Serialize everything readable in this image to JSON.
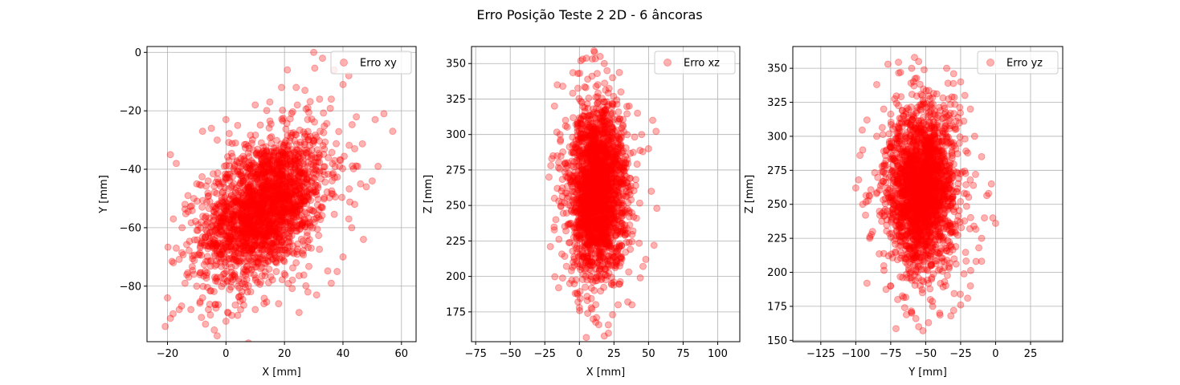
{
  "figure": {
    "title": "Erro Posição Teste 2 2D - 6 âncoras",
    "marker_color": "#ff0000",
    "marker_alpha": 0.3
  },
  "chart_data": [
    {
      "type": "scatter",
      "xlabel": "X [mm]",
      "ylabel": "Y [mm]",
      "xlim": [
        -27,
        65
      ],
      "ylim": [
        -99,
        2
      ],
      "xticks": [
        -20,
        0,
        20,
        40,
        60
      ],
      "yticks": [
        -80,
        -60,
        -40,
        -20,
        0
      ],
      "xtick_labels": [
        "−20",
        "0",
        "20",
        "40",
        "60"
      ],
      "ytick_labels": [
        "−80",
        "−60",
        "−40",
        "−20",
        "0"
      ],
      "grid": true,
      "legend_position": "top-right",
      "series": [
        {
          "name": "Erro xy",
          "cloud": {
            "center": [
              13,
              -53
            ],
            "std": [
              10.5,
              12.5
            ],
            "corr": 0.42,
            "n": 2200
          },
          "points": [
            [
              30,
              0
            ],
            [
              33,
              -2
            ],
            [
              37,
              -6
            ],
            [
              42,
              -8
            ],
            [
              40,
              -11
            ],
            [
              21,
              -6
            ],
            [
              54,
              -21
            ],
            [
              57,
              -27
            ],
            [
              51,
              -23
            ],
            [
              52,
              -39
            ],
            [
              48,
              -46
            ],
            [
              44,
              -52
            ],
            [
              42,
              -57
            ],
            [
              40,
              -70
            ],
            [
              47,
              -64
            ],
            [
              36,
              -79
            ],
            [
              31,
              -83
            ],
            [
              25,
              -89
            ],
            [
              4,
              -90
            ],
            [
              -19,
              -35
            ],
            [
              -17,
              -38
            ],
            [
              -20,
              -84
            ],
            [
              -19,
              -91
            ],
            [
              -16,
              -88
            ],
            [
              -12,
              -88
            ],
            [
              -7,
              -93
            ],
            [
              -6,
              -88
            ],
            [
              -4,
              -95
            ],
            [
              -3,
              -97
            ],
            [
              0,
              -92
            ],
            [
              2,
              -90
            ],
            [
              5,
              -88
            ],
            [
              10,
              -88
            ],
            [
              13,
              -86
            ],
            [
              -18,
              -57
            ],
            [
              -15,
              -60
            ],
            [
              -14,
              -52
            ],
            [
              -13,
              -49
            ],
            [
              -10,
              -45
            ],
            [
              -8,
              -27
            ],
            [
              -5,
              -26
            ],
            [
              -3,
              -30
            ],
            [
              0,
              -23
            ],
            [
              4,
              -25
            ],
            [
              10,
              -18
            ],
            [
              15,
              -17
            ],
            [
              19,
              -12
            ],
            [
              27,
              -13
            ],
            [
              32,
              -16
            ],
            [
              36,
              -16
            ],
            [
              44,
              -33
            ],
            [
              46,
              -45
            ],
            [
              50,
              -44
            ],
            [
              43,
              -60
            ],
            [
              38,
              -75
            ],
            [
              28,
              -82
            ],
            [
              18,
              -86
            ],
            [
              -17,
              -67
            ],
            [
              -18,
              -72
            ],
            [
              -14,
              -79
            ],
            [
              -10,
              -80
            ],
            [
              -8,
              -84
            ],
            [
              24,
              -12
            ],
            [
              28,
              -19
            ],
            [
              45,
              -39
            ]
          ]
        }
      ]
    },
    {
      "type": "scatter",
      "xlabel": "X [mm]",
      "ylabel": "Z [mm]",
      "xlim": [
        -78,
        116
      ],
      "ylim": [
        154,
        362
      ],
      "xticks": [
        -75,
        -50,
        -25,
        0,
        25,
        50,
        75,
        100
      ],
      "yticks": [
        175,
        200,
        225,
        250,
        275,
        300,
        325,
        350
      ],
      "xtick_labels": [
        "−75",
        "−50",
        "−25",
        "0",
        "25",
        "50",
        "75",
        "100"
      ],
      "ytick_labels": [
        "175",
        "200",
        "225",
        "250",
        "275",
        "300",
        "325",
        "350"
      ],
      "grid": true,
      "legend_position": "top-right",
      "series": [
        {
          "name": "Erro xz",
          "cloud": {
            "center": [
              13,
              260
            ],
            "std": [
              10.5,
              30
            ],
            "corr": 0,
            "n": 2200
          },
          "points": [
            [
              11,
              358
            ],
            [
              15,
              355
            ],
            [
              1,
              352
            ],
            [
              18,
              350
            ],
            [
              20,
              345
            ],
            [
              -1,
              343
            ],
            [
              6,
              339
            ],
            [
              -16,
              335
            ],
            [
              -12,
              334
            ],
            [
              -18,
              320
            ],
            [
              -20,
              283
            ],
            [
              -22,
              270
            ],
            [
              -18,
              255
            ],
            [
              -17,
              240
            ],
            [
              -21,
              221
            ],
            [
              -15,
              192
            ],
            [
              -7,
              195
            ],
            [
              -3,
              188
            ],
            [
              -1,
              182
            ],
            [
              0,
              178
            ],
            [
              6,
              174
            ],
            [
              10,
              170
            ],
            [
              14,
              166
            ],
            [
              18,
              158
            ],
            [
              21,
              160
            ],
            [
              5,
              157
            ],
            [
              24,
              173
            ],
            [
              28,
              180
            ],
            [
              35,
              182
            ],
            [
              38,
              180
            ],
            [
              44,
              199
            ],
            [
              46,
              207
            ],
            [
              48,
              212
            ],
            [
              54,
              222
            ],
            [
              56,
              248
            ],
            [
              52,
              260
            ],
            [
              53,
              310
            ],
            [
              45,
              300
            ],
            [
              50,
              290
            ],
            [
              42,
              315
            ],
            [
              30,
              330
            ],
            [
              36,
              320
            ],
            [
              24,
              340
            ],
            [
              -10,
              310
            ],
            [
              -14,
              300
            ],
            [
              -19,
              285
            ],
            [
              -16,
              262
            ]
          ]
        }
      ]
    },
    {
      "type": "scatter",
      "xlabel": "Y [mm]",
      "ylabel": "Z [mm]",
      "xlim": [
        -145,
        48
      ],
      "ylim": [
        149,
        366
      ],
      "xticks": [
        -125,
        -100,
        -75,
        -50,
        -25,
        0,
        25
      ],
      "yticks": [
        150,
        175,
        200,
        225,
        250,
        275,
        300,
        325,
        350
      ],
      "xtick_labels": [
        "−125",
        "−100",
        "−75",
        "−50",
        "−25",
        "0",
        "25"
      ],
      "ytick_labels": [
        "150",
        "175",
        "200",
        "225",
        "250",
        "275",
        "300",
        "325",
        "350"
      ],
      "grid": true,
      "legend_position": "top-right",
      "series": [
        {
          "name": "Erro yz",
          "cloud": {
            "center": [
              -53,
              260
            ],
            "std": [
              12.5,
              30
            ],
            "corr": 0,
            "n": 2200
          },
          "points": [
            [
              -58,
              358
            ],
            [
              -55,
              355
            ],
            [
              -60,
              350
            ],
            [
              -77,
              353
            ],
            [
              -35,
              350
            ],
            [
              -30,
              346
            ],
            [
              -68,
              347
            ],
            [
              -85,
              338
            ],
            [
              -92,
              312
            ],
            [
              -97,
              286
            ],
            [
              -98,
              268
            ],
            [
              -100,
              262
            ],
            [
              -95,
              250
            ],
            [
              -93,
              242
            ],
            [
              -88,
              230
            ],
            [
              -90,
              225
            ],
            [
              -92,
              192
            ],
            [
              -75,
              190
            ],
            [
              -70,
              180
            ],
            [
              -65,
              174
            ],
            [
              -60,
              170
            ],
            [
              -57,
              166
            ],
            [
              -55,
              160
            ],
            [
              -52,
              157
            ],
            [
              -48,
              163
            ],
            [
              -45,
              175
            ],
            [
              -40,
              170
            ],
            [
              -32,
              168
            ],
            [
              -30,
              172
            ],
            [
              -25,
              176
            ],
            [
              -20,
              181
            ],
            [
              -18,
              190
            ],
            [
              -14,
              208
            ],
            [
              -12,
              218
            ],
            [
              -10,
              225
            ],
            [
              -8,
              240
            ],
            [
              -2,
              240
            ],
            [
              0,
              236
            ],
            [
              -5,
              258
            ],
            [
              -3,
              265
            ],
            [
              -10,
              285
            ],
            [
              -15,
              300
            ],
            [
              -18,
              320
            ],
            [
              -22,
              330
            ],
            [
              -25,
              340
            ],
            [
              -80,
              320
            ],
            [
              -85,
              300
            ],
            [
              -95,
              290
            ],
            [
              -90,
              256
            ]
          ]
        }
      ]
    }
  ]
}
